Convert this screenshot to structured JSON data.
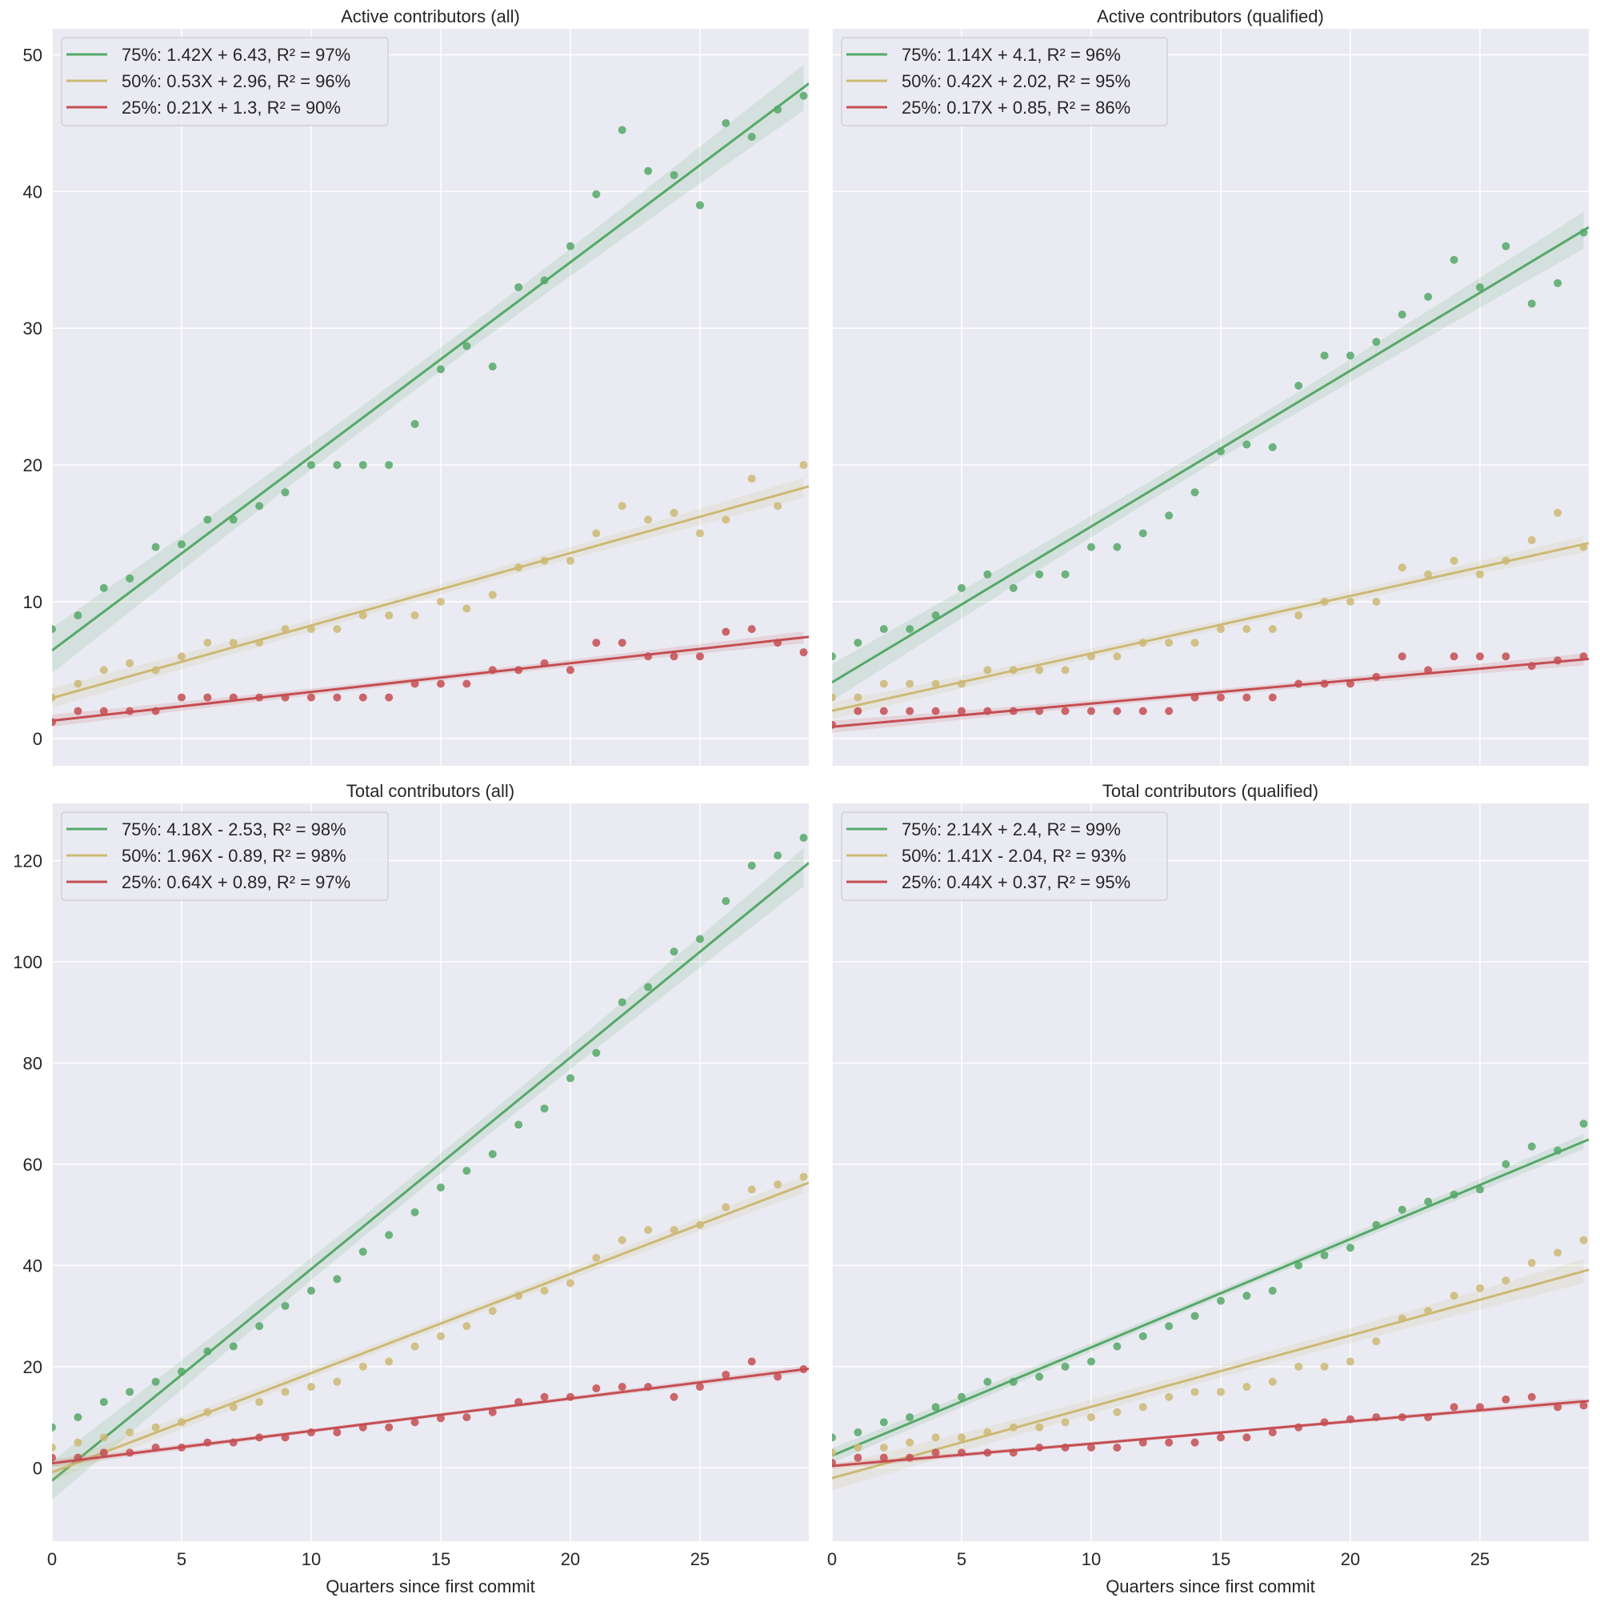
{
  "colors": {
    "background": "#eaeaf2",
    "grid": "#ffffff",
    "75%": "#55a868",
    "50%": "#ccb974",
    "25%": "#c44e52"
  },
  "chart_data": [
    {
      "type": "scatter",
      "title": "Active contributors (all)",
      "xlabel": "",
      "ylabel": "",
      "xlim": [
        0,
        29.2
      ],
      "ylim": [
        -2.0,
        51.9
      ],
      "xticks": [
        "0",
        "5",
        "10",
        "15",
        "20",
        "25"
      ],
      "yticks": [
        "0",
        "10",
        "20",
        "30",
        "40",
        "50"
      ],
      "grid": true,
      "legend": "top-left",
      "x": [
        0,
        1,
        2,
        3,
        4,
        5,
        6,
        7,
        8,
        9,
        10,
        11,
        12,
        13,
        14,
        15,
        16,
        17,
        18,
        19,
        20,
        21,
        22,
        23,
        24,
        25,
        26,
        27,
        28,
        29
      ],
      "series": [
        {
          "name": "75%:  1.42X + 6.43, R² = 97%",
          "key": "75%",
          "slope": 1.42,
          "intercept": 6.43,
          "values": [
            8,
            9,
            11,
            11.7,
            14,
            14.2,
            16,
            16,
            17,
            18,
            20,
            20,
            20,
            20,
            23,
            27,
            28.7,
            27.2,
            33,
            33.5,
            36,
            39.8,
            44.5,
            41.5,
            41.2,
            39,
            45,
            44,
            46,
            47
          ]
        },
        {
          "name": "50%:  0.53X + 2.96, R² = 96%",
          "key": "50%",
          "slope": 0.53,
          "intercept": 2.96,
          "values": [
            3,
            4,
            5,
            5.5,
            5,
            6,
            7,
            7,
            7,
            8,
            8,
            8,
            9,
            9,
            9,
            10,
            9.5,
            10.5,
            12.5,
            13,
            13,
            15,
            17,
            16,
            16.5,
            15,
            16,
            19,
            17,
            20
          ]
        },
        {
          "name": "25%:  0.21X + 1.3, R² = 90%",
          "key": "25%",
          "slope": 0.21,
          "intercept": 1.3,
          "values": [
            1.2,
            2,
            2,
            2,
            2,
            3,
            3,
            3,
            3,
            3,
            3,
            3,
            3,
            3,
            4,
            4,
            4,
            5,
            5,
            5.5,
            5,
            7,
            7,
            6,
            6,
            6,
            7.8,
            8,
            7,
            6.3
          ]
        }
      ]
    },
    {
      "type": "scatter",
      "title": "Active contributors (qualified)",
      "xlabel": "",
      "ylabel": "",
      "xlim": [
        0,
        29.2
      ],
      "ylim": [
        -2.0,
        51.9
      ],
      "xticks": [
        "0",
        "5",
        "10",
        "15",
        "20",
        "25"
      ],
      "yticks": [],
      "grid": true,
      "legend": "top-left",
      "x": [
        0,
        1,
        2,
        3,
        4,
        5,
        6,
        7,
        8,
        9,
        10,
        11,
        12,
        13,
        14,
        15,
        16,
        17,
        18,
        19,
        20,
        21,
        22,
        23,
        24,
        25,
        26,
        27,
        28,
        29
      ],
      "series": [
        {
          "name": "75%:  1.14X + 4.1, R² = 96%",
          "key": "75%",
          "slope": 1.14,
          "intercept": 4.1,
          "values": [
            6,
            7,
            8,
            8,
            9,
            11,
            12,
            11,
            12,
            12,
            14,
            14,
            15,
            16.3,
            18,
            21,
            21.5,
            21.3,
            25.8,
            28,
            28,
            29,
            31,
            32.3,
            35,
            33,
            36,
            31.8,
            33.3,
            37
          ]
        },
        {
          "name": "50%:  0.42X + 2.02, R² = 95%",
          "key": "50%",
          "slope": 0.42,
          "intercept": 2.02,
          "values": [
            3,
            3,
            4,
            4,
            4,
            4,
            5,
            5,
            5,
            5,
            6,
            6,
            7,
            7,
            7,
            8,
            8,
            8,
            9,
            10,
            10,
            10,
            12.5,
            12,
            13,
            12,
            13,
            14.5,
            16.5,
            14
          ]
        },
        {
          "name": "25%:  0.17X + 0.85, R² = 86%",
          "key": "25%",
          "slope": 0.17,
          "intercept": 0.85,
          "values": [
            1,
            2,
            2,
            2,
            2,
            2,
            2,
            2,
            2,
            2,
            2,
            2,
            2,
            2,
            3,
            3,
            3,
            3,
            4,
            4,
            4,
            4.5,
            6,
            5,
            6,
            6,
            6,
            5.3,
            5.7,
            6
          ]
        }
      ]
    },
    {
      "type": "scatter",
      "title": "Total contributors (all)",
      "xlabel": "Quarters since first commit",
      "ylabel": "",
      "xlim": [
        0,
        29.2
      ],
      "ylim": [
        -14.5,
        131.3
      ],
      "xticks": [
        "0",
        "5",
        "10",
        "15",
        "20",
        "25"
      ],
      "yticks": [
        "0",
        "20",
        "40",
        "60",
        "80",
        "100",
        "120"
      ],
      "grid": true,
      "legend": "top-left",
      "x": [
        0,
        1,
        2,
        3,
        4,
        5,
        6,
        7,
        8,
        9,
        10,
        11,
        12,
        13,
        14,
        15,
        16,
        17,
        18,
        19,
        20,
        21,
        22,
        23,
        24,
        25,
        26,
        27,
        28,
        29
      ],
      "series": [
        {
          "name": "75%:  4.18X - 2.53, R² = 98%",
          "key": "75%",
          "slope": 4.18,
          "intercept": -2.53,
          "values": [
            8,
            10,
            13,
            15,
            17,
            19,
            23,
            24,
            28,
            32,
            35,
            37.3,
            42.7,
            46,
            50.5,
            55.4,
            58.7,
            62,
            67.8,
            71,
            77,
            82,
            92,
            95,
            102,
            104.5,
            112,
            119,
            121,
            124.5
          ]
        },
        {
          "name": "50%:  1.96X - 0.89, R² = 98%",
          "key": "50%",
          "slope": 1.96,
          "intercept": -0.89,
          "values": [
            4,
            5,
            6,
            7,
            8,
            9,
            11,
            12,
            13,
            15,
            16,
            17,
            20,
            21,
            24,
            26,
            28,
            31,
            34,
            35,
            36.5,
            41.5,
            45,
            47,
            47,
            48,
            51.5,
            55,
            56,
            57.5
          ]
        },
        {
          "name": "25%:  0.64X + 0.89, R² = 97%",
          "key": "25%",
          "slope": 0.64,
          "intercept": 0.89,
          "values": [
            2,
            2,
            3,
            3,
            4,
            4,
            5,
            5,
            6,
            6,
            7,
            7,
            8,
            8,
            9,
            9.8,
            10,
            11,
            13,
            14,
            14,
            15.7,
            16,
            16,
            14,
            16,
            18.4,
            21,
            18,
            19.5
          ]
        }
      ]
    },
    {
      "type": "scatter",
      "title": "Total contributors (qualified)",
      "xlabel": "Quarters since first commit",
      "ylabel": "",
      "xlim": [
        0,
        29.2
      ],
      "ylim": [
        -14.5,
        131.3
      ],
      "xticks": [
        "0",
        "5",
        "10",
        "15",
        "20",
        "25"
      ],
      "yticks": [],
      "grid": true,
      "legend": "top-left",
      "x": [
        0,
        1,
        2,
        3,
        4,
        5,
        6,
        7,
        8,
        9,
        10,
        11,
        12,
        13,
        14,
        15,
        16,
        17,
        18,
        19,
        20,
        21,
        22,
        23,
        24,
        25,
        26,
        27,
        28,
        29
      ],
      "series": [
        {
          "name": "75%:  2.14X + 2.4, R² = 99%",
          "key": "75%",
          "slope": 2.14,
          "intercept": 2.4,
          "values": [
            6,
            7,
            9,
            10,
            12,
            14,
            17,
            17,
            18,
            20,
            21,
            24,
            26,
            28,
            30,
            33,
            34,
            35,
            40,
            42,
            43.5,
            48,
            51,
            52.6,
            54,
            55,
            60,
            63.5,
            62.7,
            68
          ]
        },
        {
          "name": "50%:  1.41X - 2.04, R² = 93%",
          "key": "50%",
          "slope": 1.41,
          "intercept": -2.04,
          "values": [
            3,
            4,
            4,
            5,
            6,
            6,
            7,
            8,
            8,
            9,
            10,
            11,
            12,
            14,
            15,
            15,
            16,
            17,
            20,
            20,
            21,
            25,
            29.5,
            31,
            34,
            35.5,
            37,
            40.5,
            42.5,
            45
          ]
        },
        {
          "name": "25%:  0.44X + 0.37, R² = 95%",
          "key": "25%",
          "slope": 0.44,
          "intercept": 0.37,
          "values": [
            1,
            2,
            2,
            2,
            3,
            3,
            3,
            3,
            4,
            4,
            4,
            4,
            5,
            5,
            5,
            6,
            6,
            7,
            8,
            9,
            9.6,
            10,
            10,
            10,
            12,
            12,
            13.5,
            14,
            12,
            12.3
          ]
        }
      ]
    }
  ]
}
